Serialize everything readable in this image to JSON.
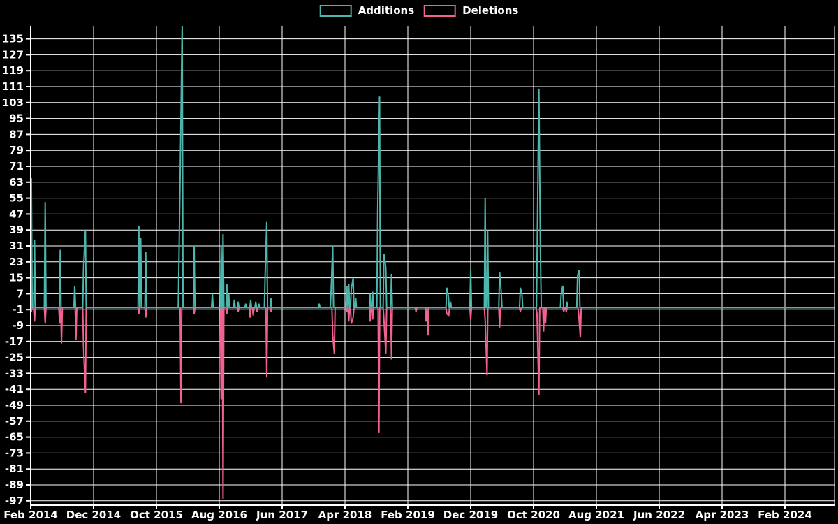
{
  "chart_data": {
    "type": "line",
    "title": "",
    "xlabel": "",
    "ylabel": "",
    "background_color": "#000000",
    "grid": true,
    "grid_color": "#ffffff",
    "text_color": "#ffffff",
    "legend_position": "top-center",
    "x_axis": {
      "unit": "months since Feb 2014 (fractional offsets = weekly samples)",
      "tick_labels": [
        "Feb 2014",
        "Dec 2014",
        "Oct 2015",
        "Aug 2016",
        "Jun 2017",
        "Apr 2018",
        "Feb 2019",
        "Dec 2019",
        "Oct 2020",
        "Aug 2021",
        "Jun 2022",
        "Apr 2023",
        "Feb 2024"
      ],
      "tick_positions_months": [
        0,
        10,
        20,
        30,
        40,
        50,
        60,
        70,
        80,
        90,
        100,
        110,
        120
      ],
      "domain_months": [
        0,
        127.9
      ]
    },
    "y_axis": {
      "tick_labels": [
        "135",
        "127",
        "119",
        "111",
        "103",
        "95",
        "87",
        "79",
        "71",
        "63",
        "55",
        "47",
        "39",
        "31",
        "23",
        "15",
        "7",
        "-1",
        "-9",
        "-17",
        "-25",
        "-33",
        "-41",
        "-49",
        "-57",
        "-65",
        "-73",
        "-81",
        "-89",
        "-97"
      ],
      "tick_values": [
        135,
        127,
        119,
        111,
        103,
        95,
        87,
        79,
        71,
        63,
        55,
        47,
        39,
        31,
        23,
        15,
        7,
        -1,
        -9,
        -17,
        -25,
        -33,
        -41,
        -49,
        -57,
        -65,
        -73,
        -81,
        -89,
        -97
      ],
      "ylim": [
        -99.2,
        141.5
      ]
    },
    "baseline_value": 0,
    "series": [
      {
        "name": "Additions",
        "color": "#4db6ac",
        "spikes": [
          [
            0.1,
            65
          ],
          [
            0.6,
            34
          ],
          [
            2.3,
            53
          ],
          [
            4.7,
            29
          ],
          [
            7.0,
            11
          ],
          [
            8.4,
            20
          ],
          [
            8.7,
            39
          ],
          [
            17.2,
            41
          ],
          [
            17.5,
            35
          ],
          [
            18.3,
            28
          ],
          [
            23.6,
            27
          ],
          [
            23.9,
            95
          ],
          [
            24.1,
            143
          ],
          [
            26.0,
            31
          ],
          [
            28.9,
            7
          ],
          [
            30.3,
            31
          ],
          [
            30.6,
            37
          ],
          [
            31.2,
            12
          ],
          [
            31.5,
            7
          ],
          [
            32.4,
            4
          ],
          [
            33.0,
            3
          ],
          [
            34.2,
            2
          ],
          [
            35.0,
            4
          ],
          [
            35.8,
            3
          ],
          [
            36.3,
            2
          ],
          [
            37.3,
            17
          ],
          [
            37.55,
            43
          ],
          [
            38.2,
            5
          ],
          [
            45.9,
            2
          ],
          [
            47.8,
            9
          ],
          [
            48.05,
            31
          ],
          [
            50.3,
            11
          ],
          [
            50.6,
            12
          ],
          [
            51.0,
            9
          ],
          [
            51.3,
            15
          ],
          [
            51.7,
            5
          ],
          [
            54.0,
            7
          ],
          [
            54.4,
            8
          ],
          [
            55.2,
            48
          ],
          [
            55.5,
            106
          ],
          [
            56.2,
            27
          ],
          [
            56.5,
            20
          ],
          [
            57.4,
            17
          ],
          [
            66.2,
            10
          ],
          [
            66.45,
            6
          ],
          [
            66.8,
            3
          ],
          [
            70.0,
            19
          ],
          [
            72.3,
            55
          ],
          [
            72.7,
            39
          ],
          [
            74.6,
            18
          ],
          [
            74.85,
            8
          ],
          [
            77.9,
            10
          ],
          [
            78.15,
            7
          ],
          [
            80.6,
            37
          ],
          [
            80.85,
            110
          ],
          [
            81.1,
            26
          ],
          [
            84.4,
            7
          ],
          [
            84.65,
            11
          ],
          [
            85.3,
            3
          ],
          [
            87.0,
            16
          ],
          [
            87.25,
            19
          ]
        ]
      },
      {
        "name": "Deletions",
        "color": "#f06292",
        "spikes": [
          [
            0.1,
            -2
          ],
          [
            0.6,
            -7
          ],
          [
            2.3,
            -8
          ],
          [
            4.6,
            -8
          ],
          [
            4.9,
            -18
          ],
          [
            7.2,
            -16
          ],
          [
            8.4,
            -20
          ],
          [
            8.7,
            -43
          ],
          [
            17.2,
            -3
          ],
          [
            18.3,
            -5
          ],
          [
            23.9,
            -48
          ],
          [
            26.0,
            -3
          ],
          [
            30.3,
            -46
          ],
          [
            30.6,
            -96
          ],
          [
            31.2,
            -3
          ],
          [
            33.0,
            -2
          ],
          [
            34.9,
            -5
          ],
          [
            35.4,
            -4
          ],
          [
            36.0,
            -2
          ],
          [
            37.55,
            -35
          ],
          [
            38.2,
            -2
          ],
          [
            48.05,
            -14
          ],
          [
            48.3,
            -23
          ],
          [
            50.3,
            -2
          ],
          [
            50.6,
            -7
          ],
          [
            51.0,
            -8
          ],
          [
            51.3,
            -5
          ],
          [
            54.0,
            -7
          ],
          [
            54.4,
            -6
          ],
          [
            55.4,
            -63
          ],
          [
            56.2,
            -6
          ],
          [
            56.5,
            -23
          ],
          [
            57.4,
            -26
          ],
          [
            61.3,
            -2
          ],
          [
            62.9,
            -7
          ],
          [
            63.2,
            -14
          ],
          [
            66.2,
            -3
          ],
          [
            66.5,
            -4
          ],
          [
            70.0,
            -6
          ],
          [
            72.3,
            -6
          ],
          [
            72.6,
            -34
          ],
          [
            74.6,
            -10
          ],
          [
            77.9,
            -2
          ],
          [
            80.55,
            -3
          ],
          [
            80.85,
            -44
          ],
          [
            81.6,
            -12
          ],
          [
            81.9,
            -8
          ],
          [
            84.8,
            -2
          ],
          [
            85.2,
            -2
          ],
          [
            87.2,
            -4
          ],
          [
            87.45,
            -15
          ]
        ]
      }
    ]
  }
}
